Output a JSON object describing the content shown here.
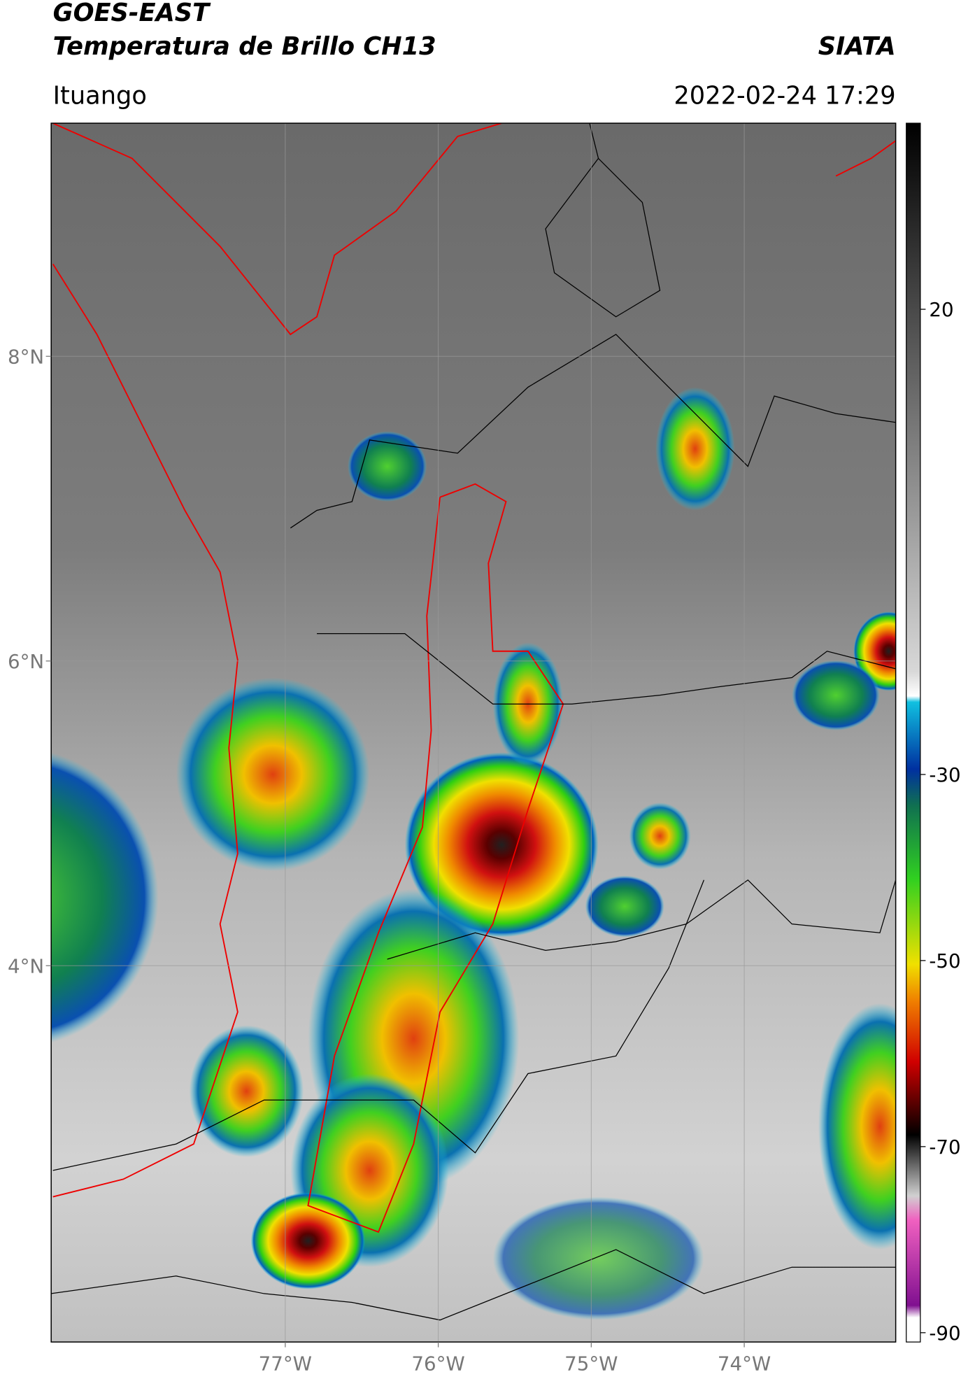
{
  "header": {
    "title": "GOES-EAST",
    "subtitle": "Temperatura de Brillo CH13",
    "organization": "SIATA",
    "location": "Ituango",
    "datetime": "2022-02-24 17:29"
  },
  "map": {
    "lonlim": [
      -78.53,
      -73.01
    ],
    "latlim": [
      1.53,
      9.53
    ],
    "lonticks": [
      {
        "value": -77,
        "label": "77°W"
      },
      {
        "value": -76,
        "label": "76°W"
      },
      {
        "value": -75,
        "label": "75°W"
      },
      {
        "value": -74,
        "label": "74°W"
      }
    ],
    "latticks": [
      {
        "value": 8,
        "label": "8°N"
      },
      {
        "value": 6,
        "label": "6°N"
      },
      {
        "value": 4,
        "label": "4°N"
      }
    ],
    "grid": true
  },
  "colorbar": {
    "lim": [
      -91,
      40
    ],
    "ticks": [
      20,
      -30,
      -50,
      -70,
      -90
    ]
  }
}
